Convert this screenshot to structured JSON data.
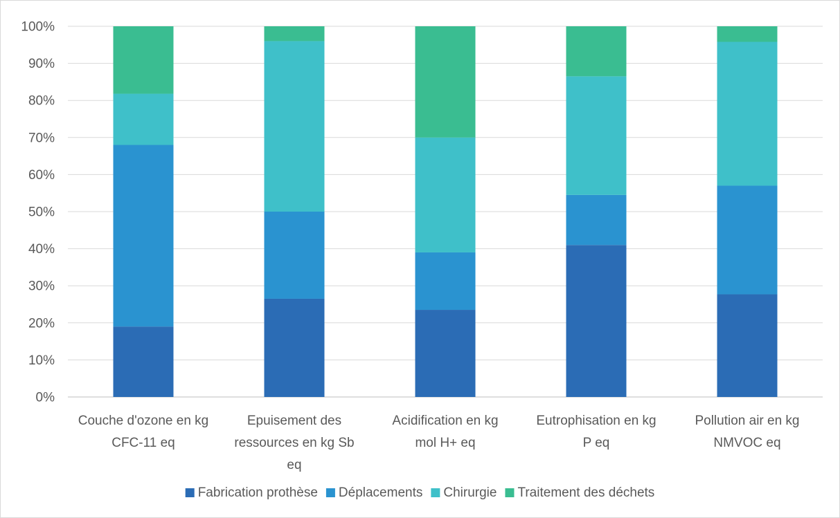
{
  "chart_data": {
    "type": "bar",
    "stacked": "percent",
    "categories": [
      [
        "Couche d'ozone en kg",
        "CFC-11 eq"
      ],
      [
        "Epuisement des",
        "ressources en kg Sb",
        "eq"
      ],
      [
        "Acidification en kg",
        "mol H+ eq"
      ],
      [
        "Eutrophisation en kg",
        "P eq"
      ],
      [
        "Pollution air en kg",
        "NMVOC eq"
      ]
    ],
    "series": [
      {
        "name": "Fabrication prothèse",
        "color": "#2b6cb5",
        "values": [
          19,
          26.5,
          23.5,
          41,
          27.7
        ]
      },
      {
        "name": "Déplacements",
        "color": "#2a93d0",
        "values": [
          49,
          23.5,
          15.5,
          13.5,
          29.3
        ]
      },
      {
        "name": "Chirurgie",
        "color": "#3fc0c9",
        "values": [
          13.8,
          46,
          31,
          32,
          38.8
        ]
      },
      {
        "name": "Traitement des déchets",
        "color": "#3abd91",
        "values": [
          18.2,
          4,
          30,
          13.5,
          4.2
        ]
      }
    ],
    "yticks": [
      "0%",
      "10%",
      "20%",
      "30%",
      "40%",
      "50%",
      "60%",
      "70%",
      "80%",
      "90%",
      "100%"
    ],
    "ylim": [
      0,
      100
    ],
    "grid": true,
    "legend": "bottom"
  }
}
